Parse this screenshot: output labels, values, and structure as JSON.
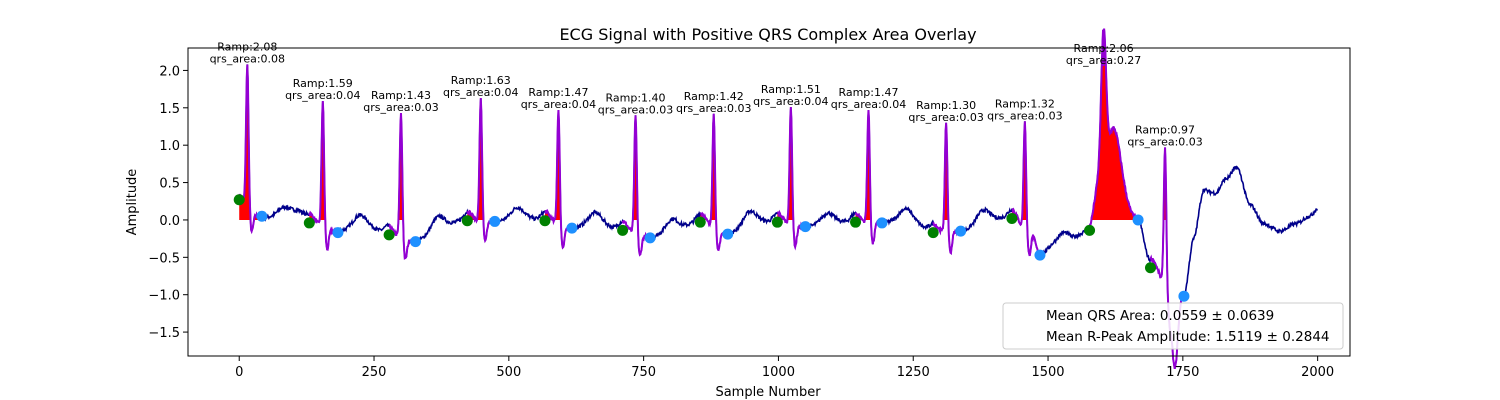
{
  "chart_data": {
    "type": "line",
    "title": "ECG Signal with Positive QRS Complex Area Overlay",
    "xlabel": "Sample Number",
    "ylabel": "Amplitude",
    "xlim": [
      -95,
      2060
    ],
    "ylim": [
      -1.82,
      2.3
    ],
    "xticks": [
      0,
      250,
      500,
      750,
      1000,
      1250,
      1500,
      1750,
      2000
    ],
    "xtick_labels": [
      "0",
      "250",
      "500",
      "750",
      "1000",
      "1250",
      "1500",
      "1750",
      "2000"
    ],
    "yticks": [
      -1.5,
      -1.0,
      -0.5,
      0.0,
      0.5,
      1.0,
      1.5,
      2.0
    ],
    "ytick_labels": [
      "−1.5",
      "−1.0",
      "−0.5",
      "0.0",
      "0.5",
      "1.0",
      "1.5",
      "2.0"
    ],
    "grid": false,
    "colors": {
      "signal": "#00008b",
      "qrs_segment": "#9400d3",
      "qrs_fill": "#ff0000",
      "onset_marker": "#008000",
      "offset_marker": "#1e90ff"
    },
    "beats": [
      {
        "r_x": 15,
        "r_amp": 2.08,
        "onset_x": 0,
        "onset_y": 0.27,
        "offset_x": 42,
        "offset_y": 0.05,
        "ramp_label": "Ramp:2.08",
        "area_label": "qrs_area:0.08"
      },
      {
        "r_x": 155,
        "r_amp": 1.59,
        "onset_x": 130,
        "onset_y": -0.04,
        "offset_x": 183,
        "offset_y": -0.17,
        "ramp_label": "Ramp:1.59",
        "area_label": "qrs_area:0.04"
      },
      {
        "r_x": 300,
        "r_amp": 1.43,
        "onset_x": 278,
        "onset_y": -0.2,
        "offset_x": 327,
        "offset_y": -0.29,
        "ramp_label": "Ramp:1.43",
        "area_label": "qrs_area:0.03"
      },
      {
        "r_x": 448,
        "r_amp": 1.63,
        "onset_x": 423,
        "onset_y": -0.01,
        "offset_x": 474,
        "offset_y": -0.02,
        "ramp_label": "Ramp:1.63",
        "area_label": "qrs_area:0.04"
      },
      {
        "r_x": 592,
        "r_amp": 1.47,
        "onset_x": 567,
        "onset_y": -0.01,
        "offset_x": 617,
        "offset_y": -0.11,
        "ramp_label": "Ramp:1.47",
        "area_label": "qrs_area:0.04"
      },
      {
        "r_x": 735,
        "r_amp": 1.4,
        "onset_x": 711,
        "onset_y": -0.14,
        "offset_x": 762,
        "offset_y": -0.24,
        "ramp_label": "Ramp:1.40",
        "area_label": "qrs_area:0.03"
      },
      {
        "r_x": 880,
        "r_amp": 1.42,
        "onset_x": 855,
        "onset_y": -0.03,
        "offset_x": 906,
        "offset_y": -0.19,
        "ramp_label": "Ramp:1.42",
        "area_label": "qrs_area:0.03"
      },
      {
        "r_x": 1023,
        "r_amp": 1.51,
        "onset_x": 998,
        "onset_y": -0.03,
        "offset_x": 1050,
        "offset_y": -0.09,
        "ramp_label": "Ramp:1.51",
        "area_label": "qrs_area:0.04"
      },
      {
        "r_x": 1167,
        "r_amp": 1.47,
        "onset_x": 1143,
        "onset_y": -0.03,
        "offset_x": 1192,
        "offset_y": -0.04,
        "ramp_label": "Ramp:1.47",
        "area_label": "qrs_area:0.04"
      },
      {
        "r_x": 1311,
        "r_amp": 1.3,
        "onset_x": 1287,
        "onset_y": -0.17,
        "offset_x": 1338,
        "offset_y": -0.15,
        "ramp_label": "Ramp:1.30",
        "area_label": "qrs_area:0.03"
      },
      {
        "r_x": 1457,
        "r_amp": 1.32,
        "onset_x": 1433,
        "onset_y": 0.02,
        "offset_x": 1485,
        "offset_y": -0.47,
        "ramp_label": "Ramp:1.32",
        "area_label": "qrs_area:0.03"
      },
      {
        "r_x": 1603,
        "r_amp": 2.06,
        "onset_x": 1577,
        "onset_y": -0.14,
        "offset_x": 1667,
        "offset_y": 0.0,
        "ramp_label": "Ramp:2.06",
        "area_label": "qrs_area:0.27"
      },
      {
        "r_x": 1717,
        "r_amp": 0.97,
        "onset_x": 1690,
        "onset_y": -0.64,
        "offset_x": 1752,
        "offset_y": -1.02,
        "ramp_label": "Ramp:0.97",
        "area_label": "qrs_area:0.03"
      }
    ],
    "legend": {
      "placement": "lower-right",
      "entries": [
        "Mean QRS Area: 0.0559 ± 0.0639",
        "Mean R-Peak Amplitude: 1.5119 ± 0.2844"
      ]
    }
  }
}
